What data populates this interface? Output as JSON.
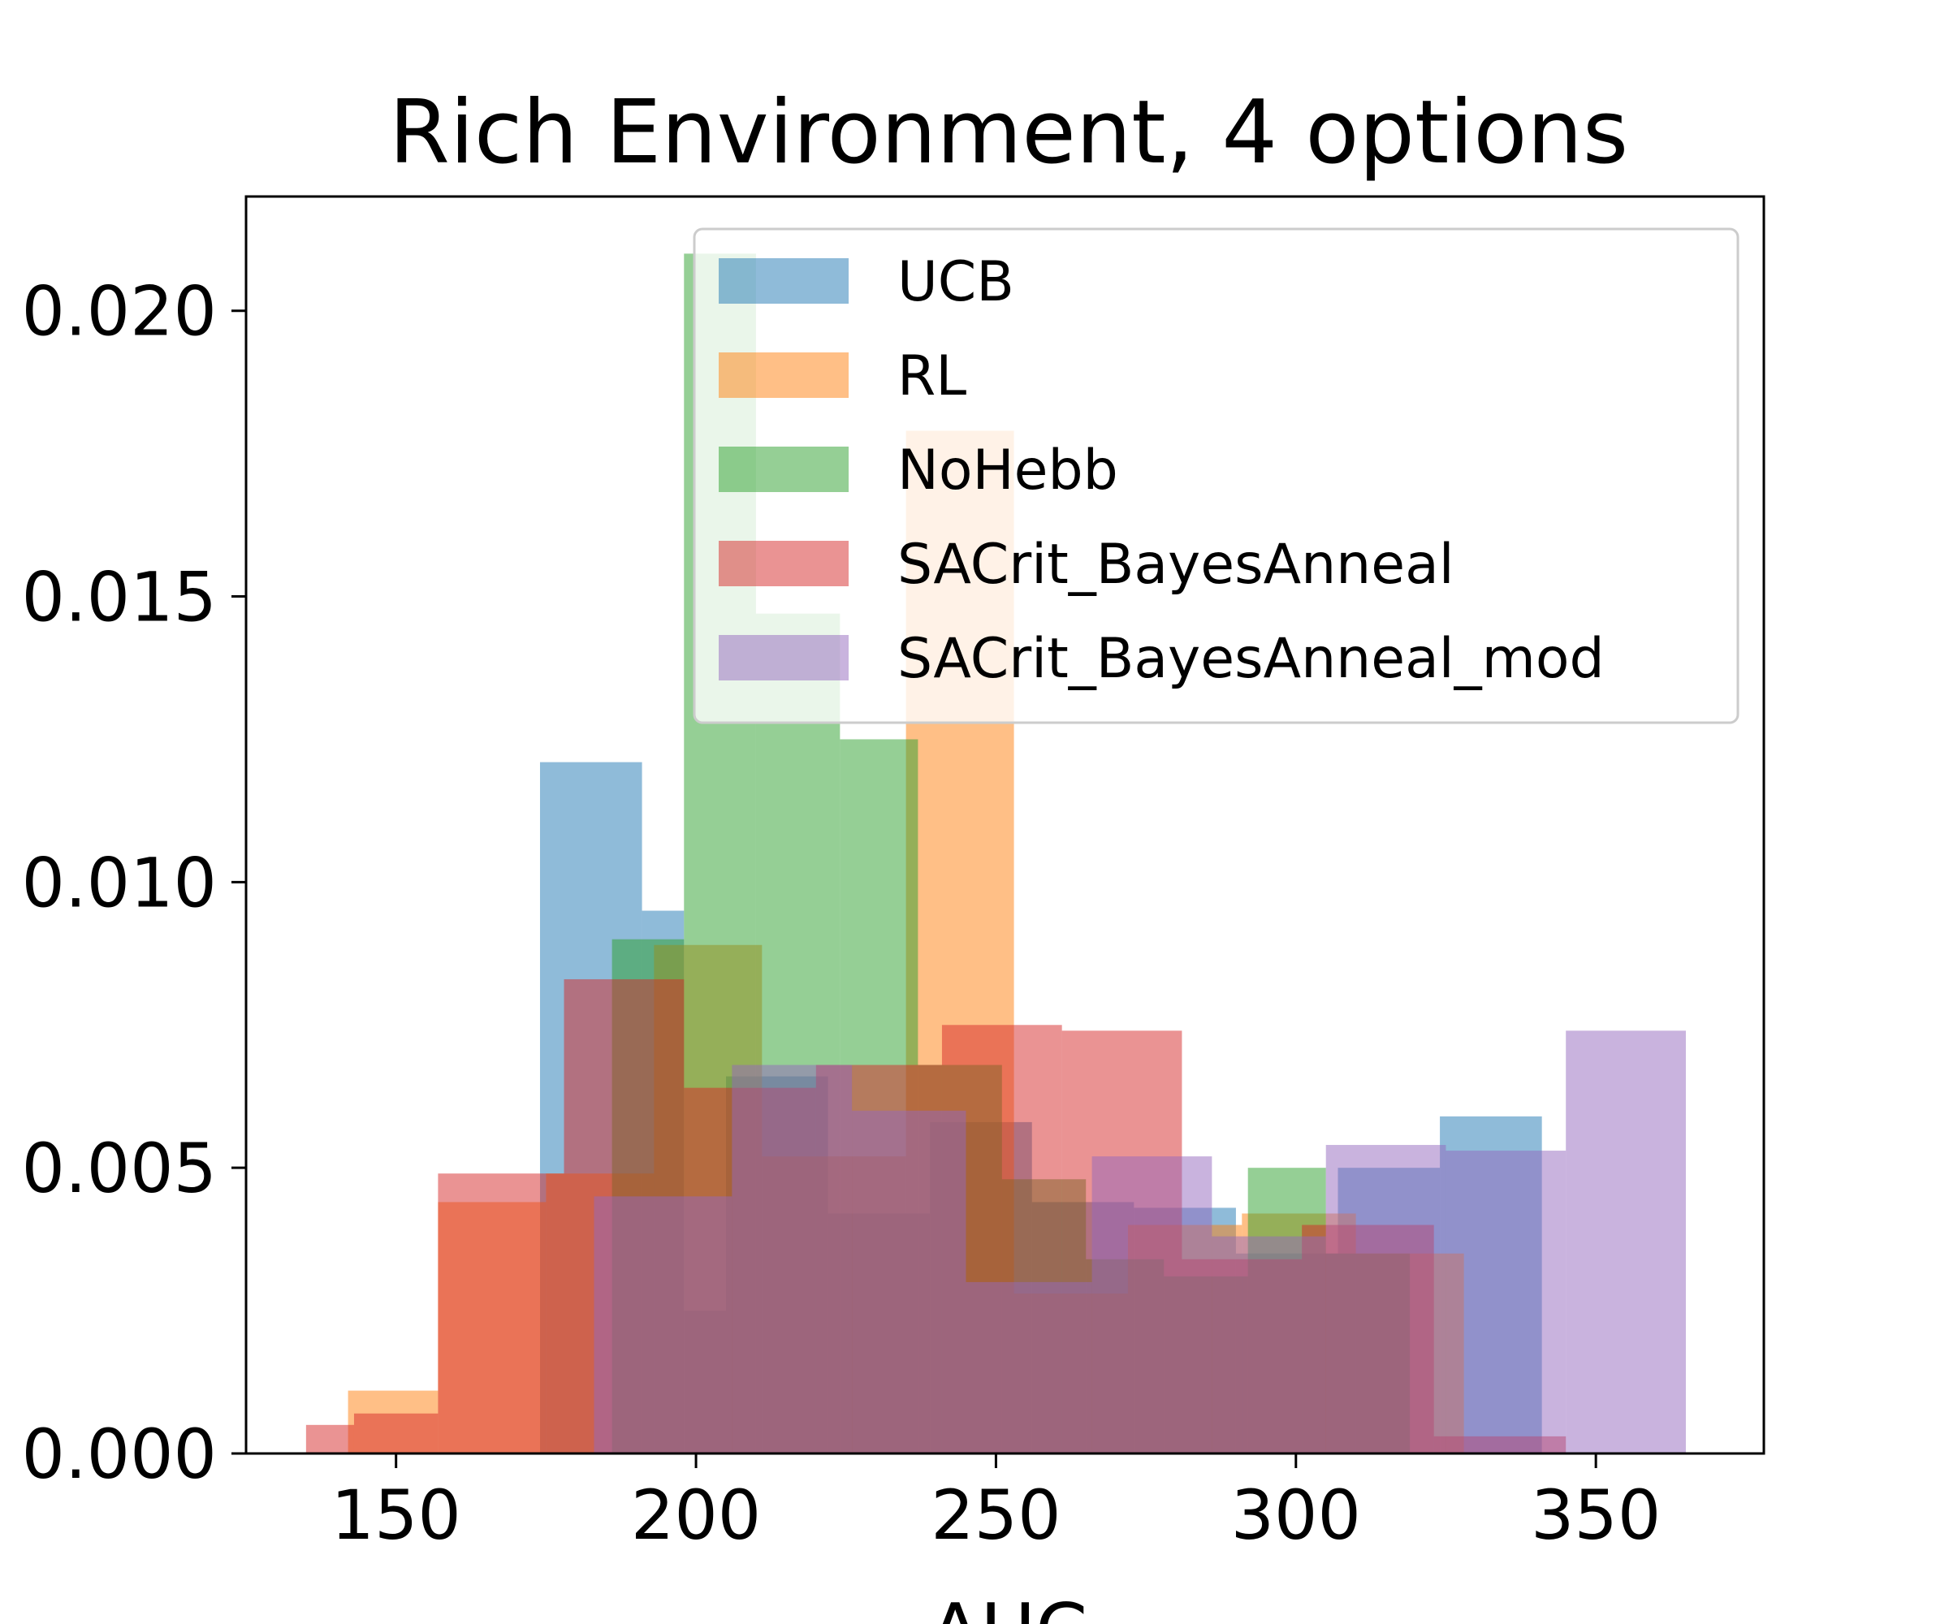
{
  "chart_data": {
    "type": "bar",
    "histogram": true,
    "title": "Rich Environment, 4 options",
    "xlabel": "AUC",
    "ylabel": "",
    "xlim": [
      125,
      378
    ],
    "ylim": [
      0,
      0.022
    ],
    "x_ticks": [
      150,
      200,
      250,
      300,
      350
    ],
    "x_tick_labels": [
      "150",
      "200",
      "250",
      "300",
      "350"
    ],
    "y_ticks": [
      0,
      0.005,
      0.01,
      0.015,
      0.02
    ],
    "y_tick_labels": [
      "0.000",
      "0.005",
      "0.010",
      "0.015",
      "0.020"
    ],
    "grid": false,
    "legend_position": "upper-right",
    "series": [
      {
        "name": "UCB",
        "color": "#1f77b4",
        "opacity": 0.5,
        "edges": [
          174,
          191,
          198,
          205,
          222,
          239,
          256,
          273,
          290,
          307,
          324,
          341
        ],
        "values": [
          0.0121,
          0.0095,
          0.0025,
          0.0066,
          0.0042,
          0.0058,
          0.0044,
          0.0043,
          0.0035,
          0.005,
          0.0059
        ]
      },
      {
        "name": "RL",
        "color": "#ff7f0e",
        "opacity": 0.5,
        "edges": [
          142,
          157,
          175,
          193,
          211,
          235,
          253,
          272,
          291,
          310,
          328
        ],
        "values": [
          0.0011,
          0.0044,
          0.0049,
          0.0089,
          0.0052,
          0.0179,
          0.0028,
          0.004,
          0.0042,
          0.0035
        ]
      },
      {
        "name": "NoHebb",
        "color": "#2ca02c",
        "opacity": 0.5,
        "edges": [
          186,
          198,
          210,
          224,
          237,
          251,
          265,
          278,
          292,
          305,
          319
        ],
        "values": [
          0.009,
          0.021,
          0.0147,
          0.0125,
          0.0068,
          0.0048,
          0.0034,
          0.0031,
          0.005,
          0.0035
        ]
      },
      {
        "name": "SACrit_BayesAnneal",
        "color": "#d62728",
        "opacity": 0.5,
        "edges": [
          135,
          143,
          157,
          178,
          198,
          220,
          241,
          261,
          281,
          301,
          323,
          345
        ],
        "values": [
          0.0005,
          0.0007,
          0.0049,
          0.0083,
          0.0064,
          0.0068,
          0.0075,
          0.0074,
          0.0034,
          0.004,
          0.0003
        ]
      },
      {
        "name": "SACrit_BayesAnneal_mod",
        "color": "#9467bd",
        "opacity": 0.5,
        "edges": [
          183,
          206,
          226,
          245,
          266,
          286,
          305,
          325,
          345,
          365
        ],
        "values": [
          0.0045,
          0.0068,
          0.006,
          0.003,
          0.0052,
          0.0038,
          0.0054,
          0.0053,
          0.0074
        ]
      }
    ]
  }
}
